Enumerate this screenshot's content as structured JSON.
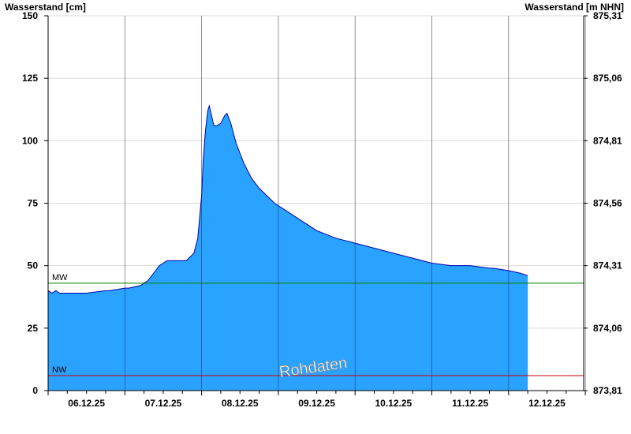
{
  "chart_data": {
    "type": "area",
    "ylabel_left": "Wasserstand [cm]",
    "ylabel_right": "Wasserstand [m NHN]",
    "ylim": [
      0,
      150
    ],
    "y_ticks_left": [
      0,
      25,
      50,
      75,
      100,
      125,
      150
    ],
    "y_ticks_right": [
      "873,81",
      "874,06",
      "874,31",
      "874,56",
      "874,81",
      "875,06",
      "875,31"
    ],
    "x_tick_labels": [
      "06.12.25",
      "07.12.25",
      "08.12.25",
      "09.12.25",
      "10.12.25",
      "11.12.25",
      "12.12.25"
    ],
    "x_range_days": [
      0,
      7
    ],
    "grid": true,
    "reference_lines": [
      {
        "label": "MW",
        "value": 43,
        "color": "#008000"
      },
      {
        "label": "NW",
        "value": 6,
        "color": "#cc0000"
      }
    ],
    "watermark": "Rohdaten",
    "fill_color": "#29A3FF",
    "line_color": "#0000AA",
    "series": [
      {
        "x": [
          0.0,
          0.05,
          0.1,
          0.15,
          0.2,
          0.5,
          0.75,
          0.8,
          1.0,
          1.05,
          1.2,
          1.3,
          1.4,
          1.45,
          1.5,
          1.55,
          1.6,
          1.8,
          1.9,
          1.95,
          2.0,
          2.02,
          2.05,
          2.08,
          2.1,
          2.13,
          2.16,
          2.2,
          2.25,
          2.3,
          2.33,
          2.38,
          2.45,
          2.55,
          2.65,
          2.75,
          2.85,
          2.95,
          3.05,
          3.2,
          3.35,
          3.5,
          3.75,
          4.0,
          4.25,
          4.5,
          4.75,
          5.0,
          5.25,
          5.5,
          5.75,
          5.8,
          6.0,
          6.15,
          6.25
        ],
        "values": [
          40,
          39,
          40,
          39,
          39,
          39,
          40,
          40,
          41,
          41,
          42,
          44,
          48,
          50,
          51,
          52,
          52,
          52,
          55,
          61,
          78,
          92,
          104,
          112,
          114,
          110,
          106,
          106,
          107,
          110,
          111,
          107,
          99,
          91,
          85,
          81,
          78,
          75,
          73,
          70,
          67,
          64,
          61,
          59,
          57,
          55,
          53,
          51,
          50,
          50,
          49,
          49,
          48,
          47,
          46
        ]
      }
    ]
  }
}
